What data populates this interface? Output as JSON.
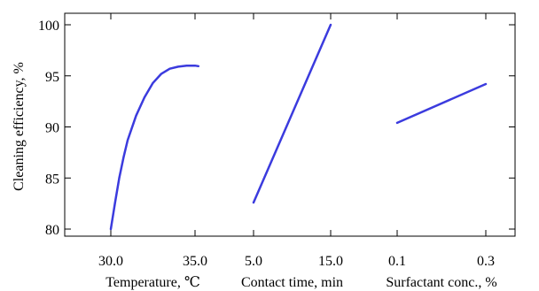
{
  "chart_data": {
    "type": "line",
    "title": "",
    "ylabel": "Cleaning efficiency, %",
    "ylim": [
      80,
      100
    ],
    "yticks": [
      80,
      85,
      90,
      95,
      100
    ],
    "grid": false,
    "line_color": "#3b3bde",
    "panels": [
      {
        "xlabel": "Temperature, ℃",
        "xlim": [
          30.0,
          35.0
        ],
        "xticks": [
          "30.0",
          "35.0"
        ],
        "x": [
          30.0,
          30.25,
          30.5,
          30.75,
          31.0,
          31.5,
          32.0,
          32.5,
          33.0,
          33.5,
          34.0,
          34.5,
          35.0,
          35.2
        ],
        "y": [
          80.0,
          82.6,
          85.0,
          87.0,
          88.7,
          91.1,
          92.9,
          94.3,
          95.2,
          95.7,
          95.9,
          96.0,
          96.0,
          95.95
        ]
      },
      {
        "xlabel": "Contact time, min",
        "xlim": [
          5.0,
          15.0
        ],
        "xticks": [
          "5.0",
          "15.0"
        ],
        "x": [
          5.0,
          15.0
        ],
        "y": [
          82.6,
          100.0
        ]
      },
      {
        "xlabel": "Surfactant conc., %",
        "xlim": [
          0.1,
          0.3
        ],
        "xticks": [
          "0.1",
          "0.3"
        ],
        "x": [
          0.1,
          0.3
        ],
        "y": [
          90.4,
          94.2
        ]
      }
    ]
  }
}
